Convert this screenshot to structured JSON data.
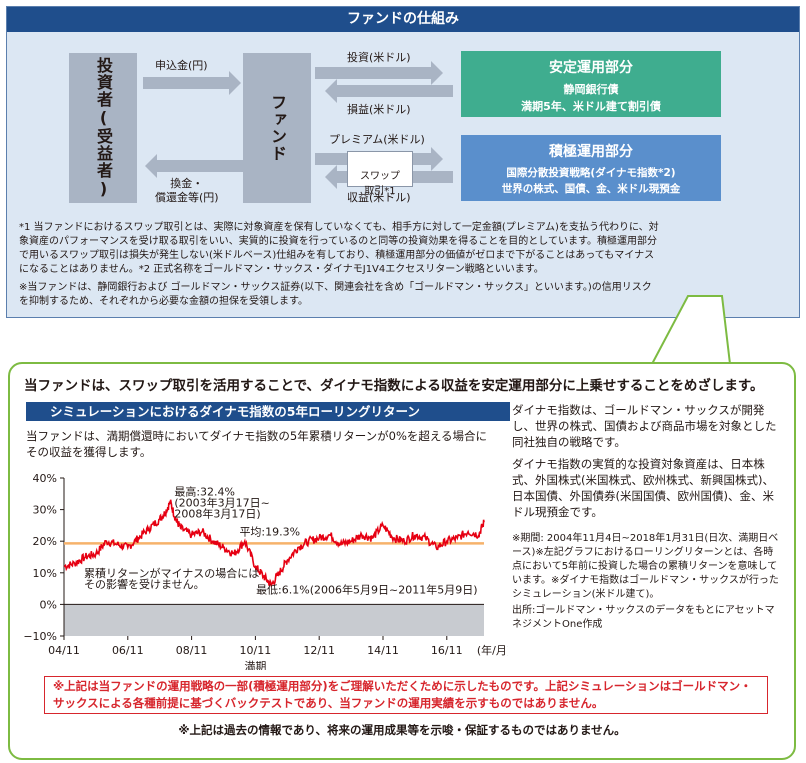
{
  "top": {
    "title": "ファンドの仕組み",
    "investor": "投資者(受益者)",
    "fund": "ファンド",
    "subscription": "申込金(円)",
    "redemption": "換金・\n償還金等(円)",
    "invest": "投資(米ドル)",
    "profit": "損益(米ドル)",
    "premium": "プレミアム(米ドル)",
    "swap": "スワップ\n取引*1",
    "income": "収益(米ドル)",
    "stable": {
      "title": "安定運用部分",
      "line1": "静岡銀行債",
      "line2": "満期5年、米ドル建て割引債"
    },
    "active": {
      "title": "積極運用部分",
      "line1": "国際分散投資戦略(ダイナモ指数*2)",
      "line2": "世界の株式、国債、金、米ドル現預金"
    },
    "note1": "*1 当ファンドにおけるスワップ取引とは、実際に対象資産を保有していなくても、相手方に対して一定金額(プレミアム)を支払う代わりに、対象資産のパフォーマンスを受け取る取引をいい、実質的に投資を行っているのと同等の投資効果を得ることを目的としています。積極運用部分で用いるスワップ取引は損失が発生しない(米ドルベース)仕組みを有しており、積極運用部分の価値がゼロまで下がることはあってもマイナスになることはありません。*2 正式名称をゴールドマン・サックス・ダイナモJ1V4エクセスリターン戦略といいます。",
    "note2": "※当ファンドは、静岡銀行および ゴールドマン・サックス証券(以下、関連会社を含め「ゴールドマン・サックス」といいます。)の信用リスクを抑制するため、それぞれから必要な金額の担保を受領します。"
  },
  "main": {
    "headline": "当ファンドは、スワップ取引を活用することで、ダイナモ指数による収益を安定運用部分に上乗せすることをめざします。",
    "chart_title": "シミュレーションにおけるダイナモ指数の5年ローリングリターン",
    "chart_desc": "当ファンドは、満期償還時においてダイナモ指数の5年累積リターンが0%を超える場合にその収益を獲得します。",
    "right_p1": "ダイナモ指数は、ゴールドマン・サックスが開発し、世界の株式、国債および商品市場を対象とした同社独自の戦略です。",
    "right_p2": "ダイナモ指数の実質的な投資対象資産は、日本株式、外国株式(米国株式、欧州株式、新興国株式)、日本国債、外国債券(米国国債、欧州国債)、金、米ドル現預金です。",
    "right_note": "※期間: 2004年11月4日~2018年1月31日(日次、満期日ベース)※左記グラフにおけるローリングリターンとは、各時点において5年前に投資した場合の累積リターンを意味しています。※ダイナモ指数はゴールドマン・サックスが行ったシミュレーション(米ドル建て)。",
    "source": "出所:ゴールドマン・サックスのデータをもとにアセットマネジメントOne作成",
    "red_note": "※上記は当ファンドの運用戦略の一部(積極運用部分)をご理解いただくために示したものです。上記シミュレーションはゴールドマン・サックスによる各種前提に基づくバックテストであり、当ファンドの運用実績を示すものではありません。",
    "footer": "※上記は過去の情報であり、将来の運用成果等を示唆・保証するものではありません。"
  },
  "chart_data": {
    "type": "line",
    "title": "シミュレーションにおけるダイナモ指数の5年ローリングリターン",
    "xlabel": "満期",
    "x_unit": "(年/月)",
    "x_ticks": [
      "04/11",
      "06/11",
      "08/11",
      "10/11",
      "12/11",
      "14/11",
      "16/11"
    ],
    "y_ticks": [
      "40%",
      "30%",
      "20%",
      "10%",
      "0%",
      "−10%"
    ],
    "ylim": [
      -10,
      40
    ],
    "xlim": [
      "2004-11",
      "2018-01"
    ],
    "series": [
      {
        "x": [
          "2004-11",
          "2005-03",
          "2005-07",
          "2005-11",
          "2006-03",
          "2006-07",
          "2006-11",
          "2007-03",
          "2007-07",
          "2007-11",
          "2008-01",
          "2008-03",
          "2008-05",
          "2008-07",
          "2008-11",
          "2009-03",
          "2009-07",
          "2009-11",
          "2010-03",
          "2010-07",
          "2010-11",
          "2011-02",
          "2011-05",
          "2011-08",
          "2011-11",
          "2012-03",
          "2012-07",
          "2012-11",
          "2013-03",
          "2013-07",
          "2013-11",
          "2014-03",
          "2014-07",
          "2014-11",
          "2015-03",
          "2015-07",
          "2015-11",
          "2016-03",
          "2016-07",
          "2016-11",
          "2017-03",
          "2017-07",
          "2017-11",
          "2018-01"
        ],
        "values": [
          12,
          13,
          15,
          16,
          20,
          19,
          18,
          21,
          24,
          27,
          29,
          32.4,
          27,
          24,
          22,
          23,
          20,
          18,
          16,
          20,
          12,
          9,
          6.1,
          10,
          14,
          18,
          20,
          21,
          22,
          19,
          20,
          22,
          21,
          25,
          21,
          20,
          22,
          21,
          18,
          20,
          21,
          23,
          22,
          26
        ]
      }
    ],
    "average": {
      "value": 19.3,
      "label": "平均:19.3%"
    },
    "annotations": {
      "max": "最高:32.4%\n(2003年3月17日~\n2008年3月17日)",
      "min": "最低:6.1%(2006年5月9日~2011年5月9日)",
      "negative": "累積リターンがマイナスの場合には\nその影響を受けません。"
    },
    "colors": {
      "line": "#e60012",
      "average": "#f6b26b",
      "negative_zone": "#c8cbd0"
    },
    "grid": false
  },
  "colors": {
    "header": "#1f4e8c",
    "green_box": "#3fad8f",
    "blue_box": "#5a8fcc",
    "panel": "#dce7f3",
    "border_green": "#7dbb42"
  }
}
